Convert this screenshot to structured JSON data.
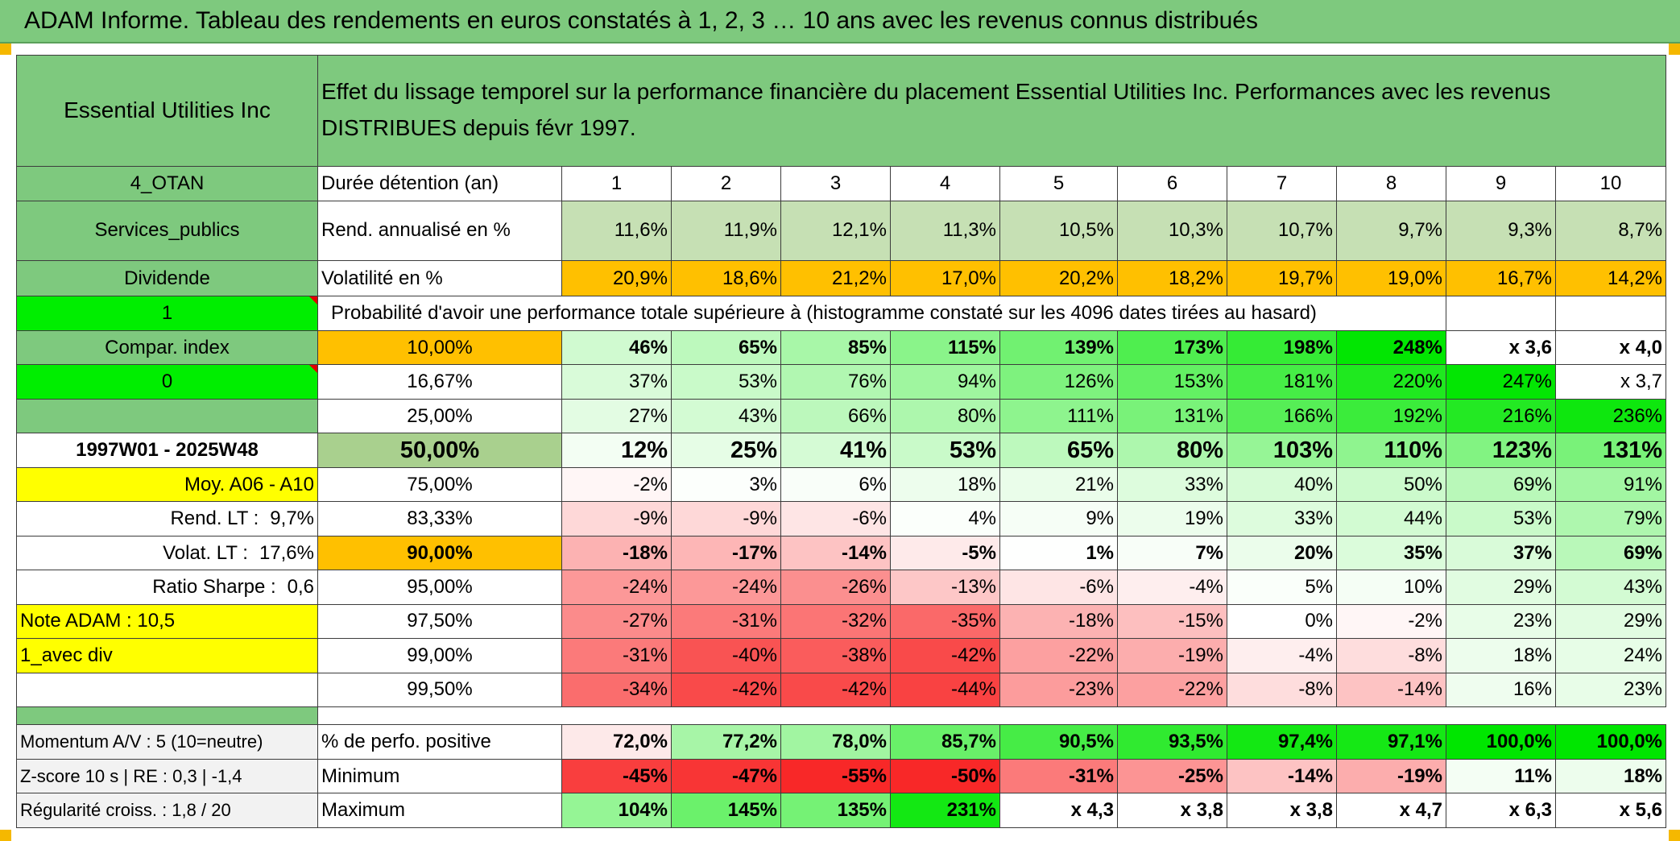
{
  "title": "ADAM Informe. Tableau des rendements en euros constatés à 1, 2, 3 … 10 ans avec les revenus connus distribués",
  "asset_name": "Essential Utilities Inc",
  "header_desc": "Effet du lissage temporel sur la performance financière du placement Essential Utilities Inc. Performances avec les revenus DISTRIBUES depuis févr 1997.",
  "left": {
    "code": "4_OTAN",
    "sector": "Services_publics",
    "dividend": "Dividende",
    "flag1": "1",
    "compar": "Compar. index",
    "flag0": "0",
    "blank": "",
    "period": "1997W01 - 2025W48",
    "moy": "Moy. A06 - A10",
    "rend_lt_label": "Rend. LT :",
    "rend_lt_value": "9,7%",
    "volat_lt_label": "Volat. LT :",
    "volat_lt_value": "17,6%",
    "sharpe_label": "Ratio Sharpe :",
    "sharpe_value": "0,6",
    "note": "Note ADAM : 10,5",
    "avec_div": "1_avec div",
    "momentum": "Momentum A/V : 5 (10=neutre)",
    "zscore": "Z-score 10 s | RE : 0,3 | -1,4",
    "regularite": "Régularité croiss. : 1,8 / 20"
  },
  "row_labels": {
    "duree": "Durée détention (an)",
    "rend": "Rend. annualisé en %",
    "vol": "Volatilité en %",
    "proba": "Probabilité d'avoir une performance totale supérieure à (histogramme constaté sur les 4096 dates tirées au hasard)",
    "pos": "% de perfo. positive",
    "min": "Minimum",
    "max": "Maximum"
  },
  "years": [
    "1",
    "2",
    "3",
    "4",
    "5",
    "6",
    "7",
    "8",
    "9",
    "10"
  ],
  "rend": [
    "11,6%",
    "11,9%",
    "12,1%",
    "11,3%",
    "10,5%",
    "10,3%",
    "10,7%",
    "9,7%",
    "9,3%",
    "8,7%"
  ],
  "vol": [
    "20,9%",
    "18,6%",
    "21,2%",
    "17,0%",
    "20,2%",
    "18,2%",
    "19,7%",
    "19,0%",
    "16,7%",
    "14,2%"
  ],
  "percentiles": [
    {
      "p": "10,00%",
      "v": [
        "46%",
        "65%",
        "85%",
        "115%",
        "139%",
        "173%",
        "198%",
        "248%",
        "x 3,6",
        "x 4,0"
      ]
    },
    {
      "p": "16,67%",
      "v": [
        "37%",
        "53%",
        "76%",
        "94%",
        "126%",
        "153%",
        "181%",
        "220%",
        "247%",
        "x 3,7"
      ]
    },
    {
      "p": "25,00%",
      "v": [
        "27%",
        "43%",
        "66%",
        "80%",
        "111%",
        "131%",
        "166%",
        "192%",
        "216%",
        "236%"
      ]
    },
    {
      "p": "50,00%",
      "v": [
        "12%",
        "25%",
        "41%",
        "53%",
        "65%",
        "80%",
        "103%",
        "110%",
        "123%",
        "131%"
      ]
    },
    {
      "p": "75,00%",
      "v": [
        "-2%",
        "3%",
        "6%",
        "18%",
        "21%",
        "33%",
        "40%",
        "50%",
        "69%",
        "91%"
      ]
    },
    {
      "p": "83,33%",
      "v": [
        "-9%",
        "-9%",
        "-6%",
        "4%",
        "9%",
        "19%",
        "33%",
        "44%",
        "53%",
        "79%"
      ]
    },
    {
      "p": "90,00%",
      "v": [
        "-18%",
        "-17%",
        "-14%",
        "-5%",
        "1%",
        "7%",
        "20%",
        "35%",
        "37%",
        "69%"
      ]
    },
    {
      "p": "95,00%",
      "v": [
        "-24%",
        "-24%",
        "-26%",
        "-13%",
        "-6%",
        "-4%",
        "5%",
        "10%",
        "29%",
        "43%"
      ]
    },
    {
      "p": "97,50%",
      "v": [
        "-27%",
        "-31%",
        "-32%",
        "-35%",
        "-18%",
        "-15%",
        "0%",
        "-2%",
        "23%",
        "29%"
      ]
    },
    {
      "p": "99,00%",
      "v": [
        "-31%",
        "-40%",
        "-38%",
        "-42%",
        "-22%",
        "-19%",
        "-4%",
        "-8%",
        "18%",
        "24%"
      ]
    },
    {
      "p": "99,50%",
      "v": [
        "-34%",
        "-42%",
        "-42%",
        "-44%",
        "-23%",
        "-22%",
        "-8%",
        "-14%",
        "16%",
        "23%"
      ]
    }
  ],
  "positive": [
    "72,0%",
    "77,2%",
    "78,0%",
    "85,7%",
    "90,5%",
    "93,5%",
    "97,4%",
    "97,1%",
    "100,0%",
    "100,0%"
  ],
  "minimum": [
    "-45%",
    "-47%",
    "-55%",
    "-50%",
    "-31%",
    "-25%",
    "-14%",
    "-19%",
    "11%",
    "18%"
  ],
  "maximum": [
    "104%",
    "145%",
    "135%",
    "231%",
    "x 4,3",
    "x 3,8",
    "x 3,8",
    "x 4,7",
    "x 6,3",
    "x 5,6"
  ],
  "colors": {
    "header_green": "#7ec97e",
    "rend_green": "#c6e0b4",
    "orange": "#ffc000",
    "bright_green": "#00ee00",
    "yellow": "#ffff00",
    "label_red": "#d21a1a",
    "strong_red": "#f8696b",
    "strong_green": "#63be7b"
  }
}
